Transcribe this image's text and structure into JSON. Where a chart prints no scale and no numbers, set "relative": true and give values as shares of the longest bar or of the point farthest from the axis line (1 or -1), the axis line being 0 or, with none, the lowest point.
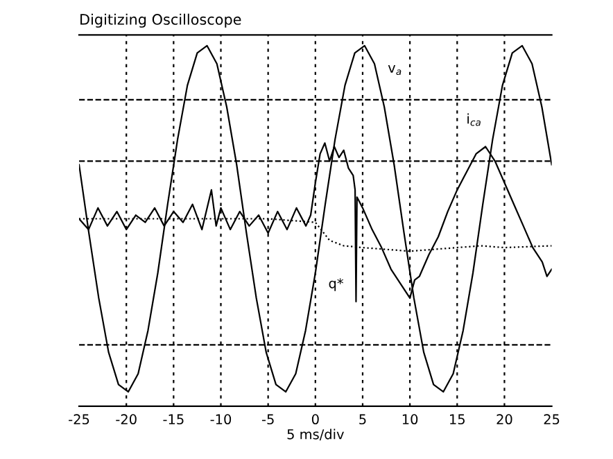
{
  "chart_data": {
    "type": "line",
    "title": "Digitizing Oscilloscope",
    "xlabel": "5 ms/div",
    "relative": true,
    "xlim": [
      -25,
      25
    ],
    "xticks": [
      -25,
      -20,
      -15,
      -10,
      -5,
      0,
      5,
      10,
      15,
      20,
      25
    ],
    "grid": "x",
    "line_style": "solid",
    "series": [
      {
        "color": "#000000",
        "x": [
          -25,
          -23.96,
          -22.92,
          -21.88,
          -20.83,
          -19.79,
          -18.75,
          -17.71,
          -16.67,
          -15.63,
          -14.58,
          -13.54,
          -12.5,
          -11.46,
          -10.42,
          -9.38,
          -8.33,
          -7.29,
          -6.25,
          -5.21,
          -4.17,
          -3.13,
          -2.08,
          -1.04,
          0,
          1.04,
          2.08,
          3.13,
          4.17,
          5.21,
          6.25,
          7.29,
          8.33,
          9.38,
          10.42,
          11.46,
          12.5,
          13.54,
          14.58,
          15.63,
          16.67,
          17.71,
          18.75,
          19.79,
          20.83,
          21.88,
          22.92,
          23.96,
          25
        ],
        "values": [
          0.67,
          0.48,
          0.3,
          0.15,
          0.06,
          0.04,
          0.09,
          0.21,
          0.37,
          0.56,
          0.74,
          0.89,
          0.98,
          1.0,
          0.95,
          0.83,
          0.67,
          0.48,
          0.3,
          0.15,
          0.06,
          0.04,
          0.09,
          0.21,
          0.37,
          0.56,
          0.74,
          0.89,
          0.98,
          1.0,
          0.95,
          0.83,
          0.67,
          0.48,
          0.3,
          0.15,
          0.06,
          0.04,
          0.09,
          0.21,
          0.37,
          0.56,
          0.74,
          0.89,
          0.98,
          1.0,
          0.95,
          0.83,
          0.67
        ]
      },
      {
        "color": "#000000",
        "x": [
          -25,
          -24,
          -23,
          -22,
          -21,
          -20,
          -19,
          -18,
          -17,
          -16,
          -15,
          -14,
          -13,
          -12,
          -11,
          -10.5,
          -10,
          -9,
          -8,
          -7,
          -6,
          -5,
          -4,
          -3,
          -2,
          -1,
          -0.5,
          0,
          0.5,
          1,
          1.5,
          2,
          2.5,
          3,
          3.5,
          4,
          4.2,
          4.3,
          4.4,
          5,
          6,
          7,
          8,
          9,
          10,
          10.5,
          11,
          12,
          13,
          14,
          15,
          16,
          17,
          18,
          19,
          20,
          21,
          22,
          23,
          24,
          24.5,
          25
        ],
        "values": [
          0.52,
          0.49,
          0.55,
          0.5,
          0.54,
          0.49,
          0.53,
          0.51,
          0.55,
          0.5,
          0.54,
          0.51,
          0.56,
          0.49,
          0.6,
          0.5,
          0.55,
          0.49,
          0.54,
          0.5,
          0.53,
          0.48,
          0.54,
          0.49,
          0.55,
          0.5,
          0.53,
          0.62,
          0.7,
          0.73,
          0.68,
          0.72,
          0.69,
          0.71,
          0.66,
          0.64,
          0.6,
          0.29,
          0.58,
          0.55,
          0.49,
          0.44,
          0.38,
          0.34,
          0.3,
          0.35,
          0.36,
          0.42,
          0.47,
          0.54,
          0.6,
          0.65,
          0.7,
          0.72,
          0.68,
          0.62,
          0.56,
          0.5,
          0.44,
          0.4,
          0.36,
          0.38
        ]
      },
      {
        "color": "#000000",
        "line_style": "dotted",
        "x": [
          -25,
          -15,
          -5,
          0,
          1.5,
          3,
          5,
          10,
          15,
          17.5,
          20,
          25
        ],
        "values": [
          0.52,
          0.52,
          0.52,
          0.51,
          0.46,
          0.445,
          0.44,
          0.43,
          0.44,
          0.445,
          0.44,
          0.445
        ]
      }
    ],
    "ref_lines": [
      {
        "axis": "y",
        "value": 0.85,
        "line_style": "dashed",
        "color": "#000000"
      },
      {
        "axis": "y",
        "value": 0.68,
        "line_style": "dashed",
        "color": "#000000"
      },
      {
        "axis": "y",
        "value": 0.17,
        "line_style": "dashed",
        "color": "#000000"
      }
    ],
    "annotations": [
      {
        "text": "v$_{a}$",
        "x": 5.21,
        "y": 1.0
      },
      {
        "text": "i$_{ca}$",
        "x": 18,
        "y": 0.72
      },
      {
        "text": "q*",
        "x": 3,
        "y": 0.445
      }
    ]
  }
}
